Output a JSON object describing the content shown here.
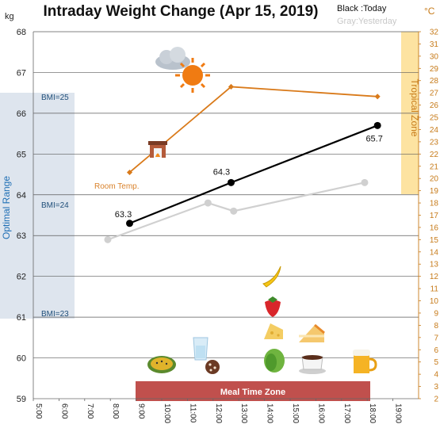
{
  "chart_data": {
    "type": "line",
    "title": "Intraday Weight Change (Apr 15, 2019)",
    "legend": {
      "black": "Black :Today",
      "gray": "Gray:Yesterday"
    },
    "y_unit": "kg",
    "y2_unit": "°C",
    "ylim": [
      59,
      68
    ],
    "y_ticks": [
      "59",
      "60",
      "61",
      "62",
      "63",
      "64",
      "65",
      "66",
      "67",
      "68"
    ],
    "y2lim": [
      2,
      32
    ],
    "y2_ticks": [
      "2",
      "3",
      "4",
      "5",
      "6",
      "7",
      "8",
      "9",
      "10",
      "11",
      "12",
      "13",
      "14",
      "15",
      "16",
      "17",
      "18",
      "19",
      "20",
      "21",
      "22",
      "23",
      "24",
      "25",
      "26",
      "27",
      "28",
      "29",
      "30",
      "31",
      "32"
    ],
    "xlim": [
      5,
      20
    ],
    "x_ticks": [
      "5:00",
      "6:00",
      "7:00",
      "8:00",
      "9:00",
      "10:00",
      "11:00",
      "12:00",
      "13:00",
      "14:00",
      "15:00",
      "16:00",
      "17:00",
      "18:00",
      "19:00"
    ],
    "grid": true,
    "series": [
      {
        "key": "today",
        "color": "#000000",
        "x": [
          8.75,
          12.7,
          18.4
        ],
        "y": [
          63.3,
          64.3,
          65.7
        ],
        "labels": [
          "63.3",
          "64.3",
          "65.7"
        ]
      },
      {
        "key": "yesterday",
        "color": "#d0d0d0",
        "x": [
          7.9,
          11.8,
          12.8,
          17.9
        ],
        "y": [
          62.9,
          63.8,
          63.6,
          64.3
        ]
      },
      {
        "key": "room_temp",
        "label": "Room Temp.",
        "color": "#d97a1a",
        "axis": "right",
        "x": [
          8.75,
          12.7,
          18.4
        ],
        "y": [
          20.5,
          27.5,
          26.7
        ]
      }
    ],
    "bands": {
      "optimal": {
        "label": "Optimal Range",
        "bmi_labels": [
          "BMI=25",
          "BMI=24",
          "BMI=23"
        ]
      },
      "tropical": {
        "label": "Tropical Zone"
      },
      "meal": {
        "label": "Meal Time Zone"
      }
    },
    "icons": [
      "cloud-icon",
      "sun-icon",
      "fireplace-icon",
      "watermelon-icon",
      "water-glass-icon",
      "cookie-icon",
      "banana-icon",
      "strawberry-icon",
      "cheese-icon",
      "cake-icon",
      "lettuce-icon",
      "coffee-icon",
      "beer-icon"
    ]
  }
}
